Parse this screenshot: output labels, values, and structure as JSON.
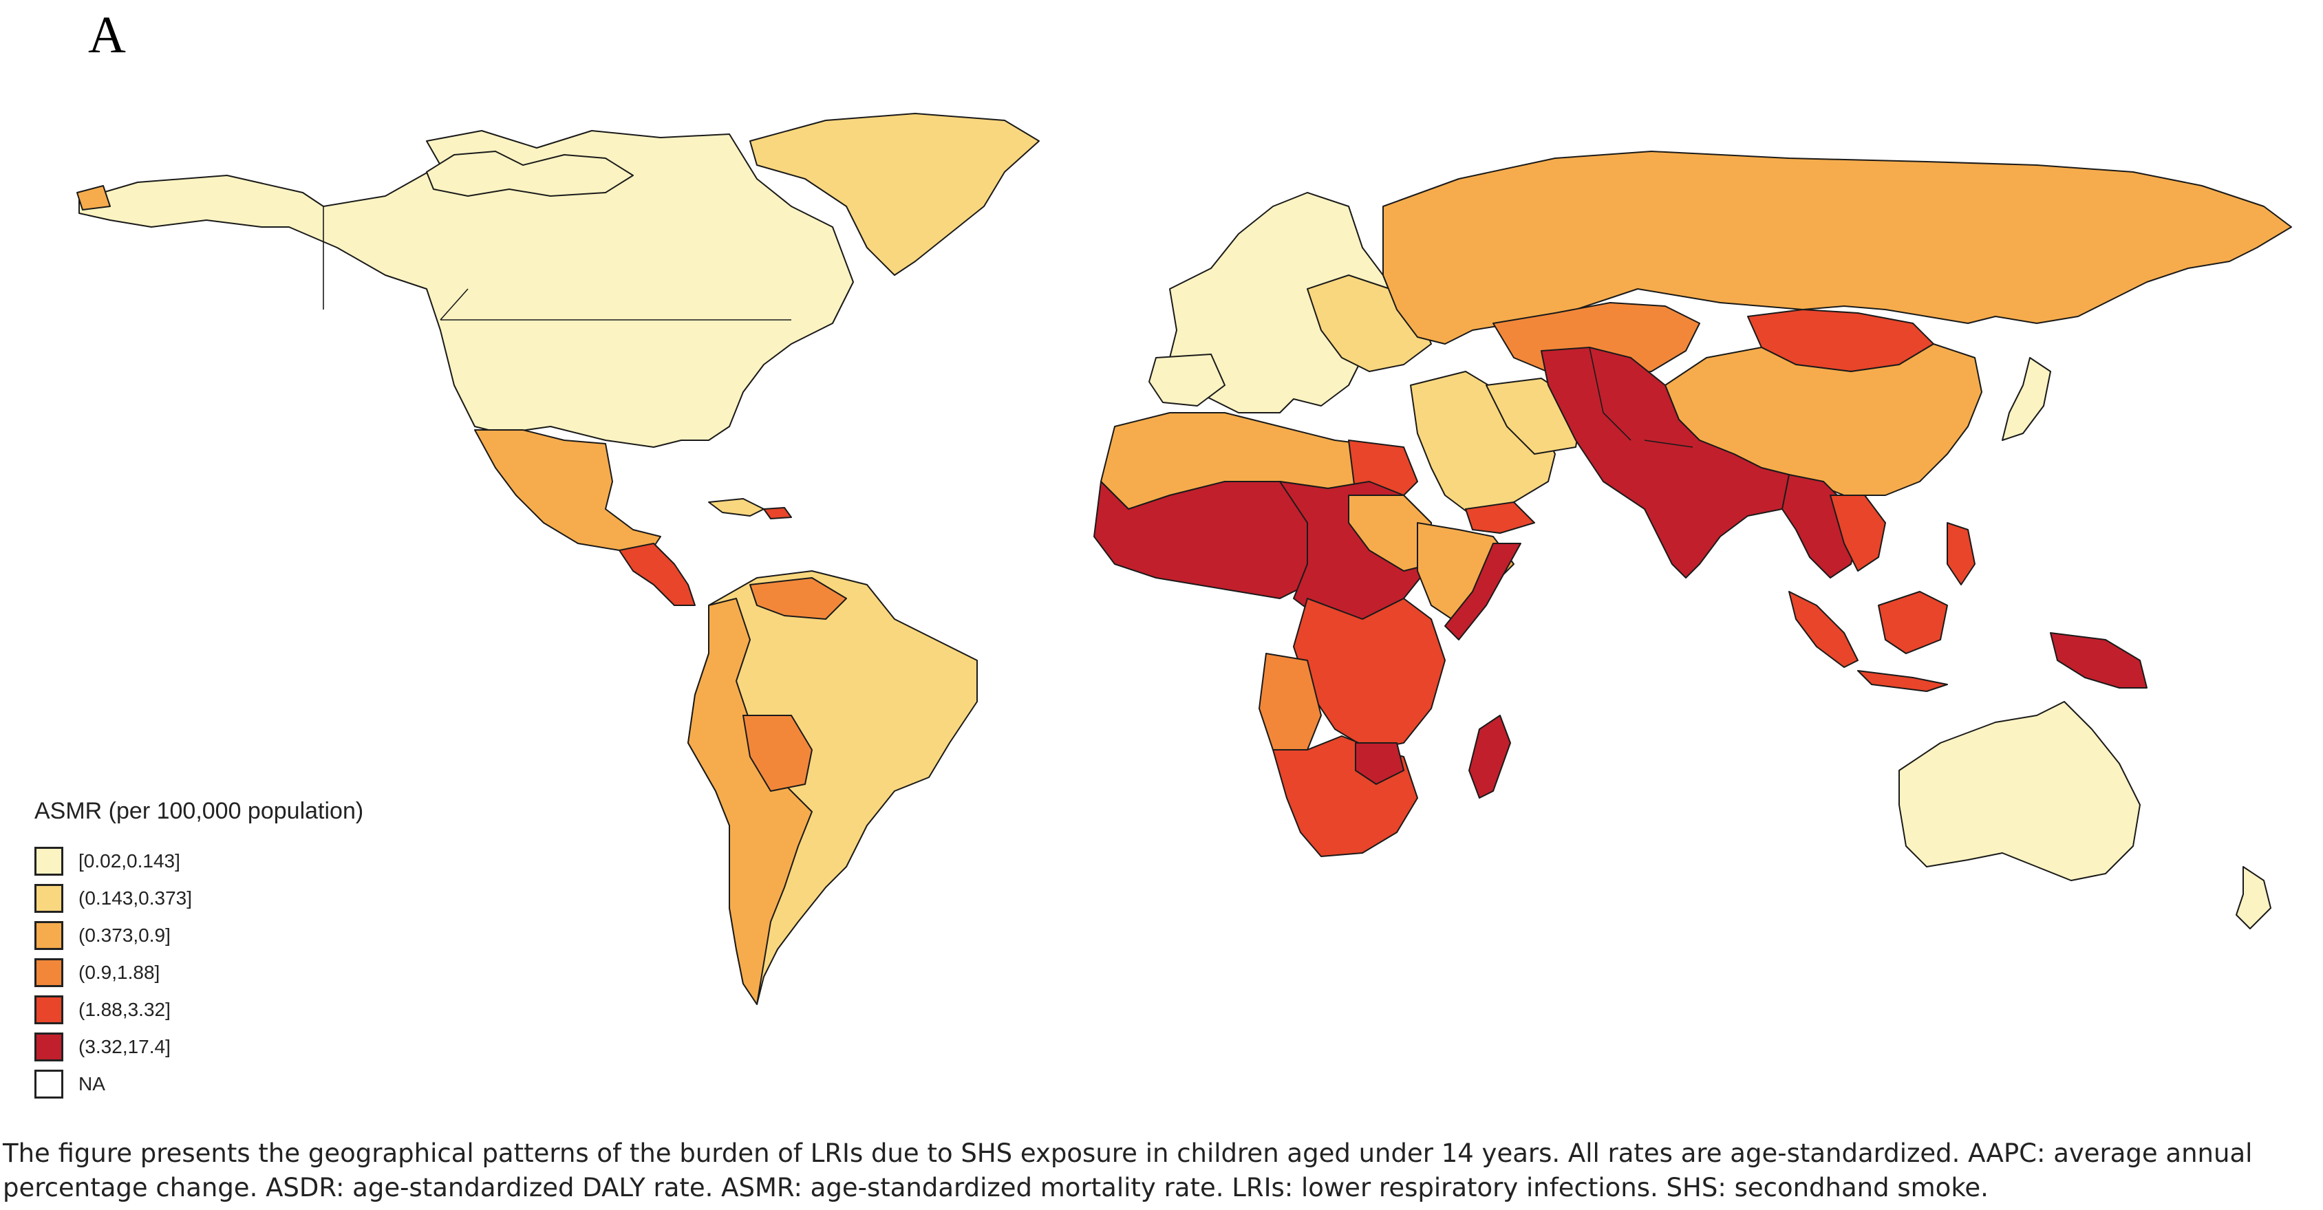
{
  "panel_label": "A",
  "legend": {
    "title": "ASMR (per 100,000 population)",
    "items": [
      {
        "label": "[0.02,0.143]",
        "color": "#fbf3c2"
      },
      {
        "label": "(0.143,0.373]",
        "color": "#f9d77e"
      },
      {
        "label": "(0.373,0.9]",
        "color": "#f6ac4c"
      },
      {
        "label": "(0.9,1.88]",
        "color": "#f2873a"
      },
      {
        "label": "(1.88,3.32]",
        "color": "#e8452a"
      },
      {
        "label": "(3.32,17.4]",
        "color": "#c11f2c"
      },
      {
        "label": "NA",
        "color": "#ffffff"
      }
    ]
  },
  "caption": "The figure presents the geographical patterns of the burden of LRIs due to SHS exposure in children aged under 14 years. All rates are age-standardized. AAPC: average annual percentage change. ASDR: age-standardized DALY rate. ASMR: age-standardized mortality rate. LRIs: lower respiratory infections. SHS: secondhand smoke."
}
